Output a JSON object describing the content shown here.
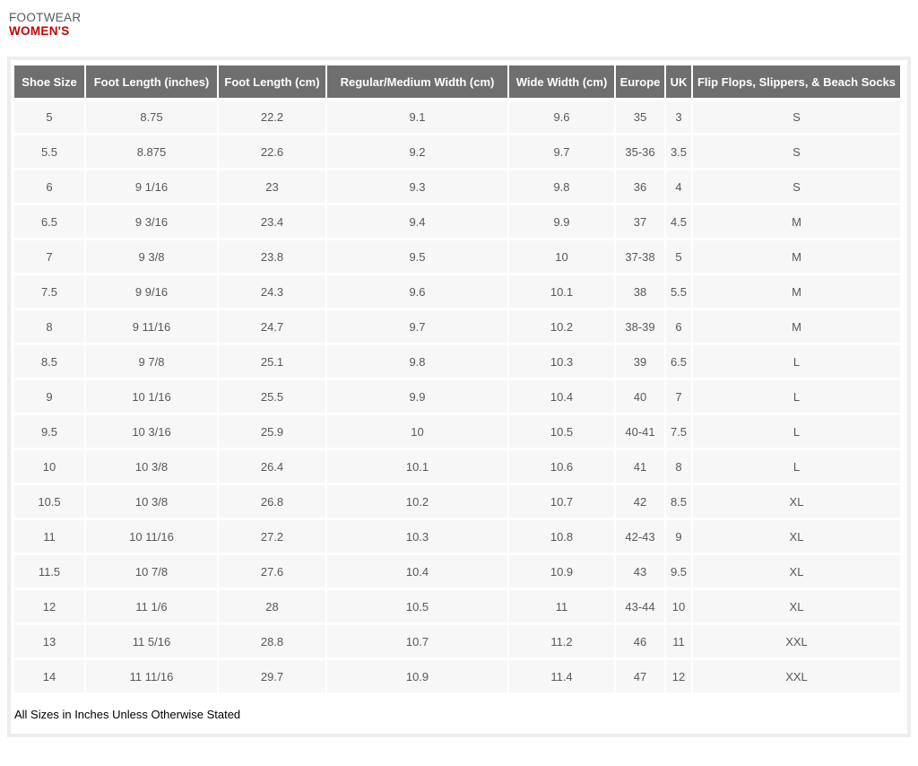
{
  "page": {
    "category_label": "FOOTWEAR",
    "title": "WOMEN'S",
    "footnote": "All Sizes in Inches Unless Otherwise Stated"
  },
  "colors": {
    "header_bg": "#6f6f6f",
    "header_text": "#ffffff",
    "cell_bg": "#f7f7f7",
    "cell_text": "#58585a",
    "title_accent": "#c90000",
    "title_muted": "#58595b",
    "panel_border": "#ededed"
  },
  "chart_data": {
    "type": "table",
    "title": "FOOTWEAR WOMEN'S",
    "columns": [
      "Shoe Size",
      "Foot Length (inches)",
      "Foot Length (cm)",
      "Regular/Medium Width (cm)",
      "Wide Width (cm)",
      "Europe",
      "UK",
      "Flip Flops, Slippers, & Beach Socks"
    ],
    "rows": [
      [
        "5",
        "8.75",
        "22.2",
        "9.1",
        "9.6",
        "35",
        "3",
        "S"
      ],
      [
        "5.5",
        "8.875",
        "22.6",
        "9.2",
        "9.7",
        "35-36",
        "3.5",
        "S"
      ],
      [
        "6",
        "9 1/16",
        "23",
        "9.3",
        "9.8",
        "36",
        "4",
        "S"
      ],
      [
        "6.5",
        "9 3/16",
        "23.4",
        "9.4",
        "9.9",
        "37",
        "4.5",
        "M"
      ],
      [
        "7",
        "9 3/8",
        "23.8",
        "9.5",
        "10",
        "37-38",
        "5",
        "M"
      ],
      [
        "7.5",
        "9 9/16",
        "24.3",
        "9.6",
        "10.1",
        "38",
        "5.5",
        "M"
      ],
      [
        "8",
        "9 11/16",
        "24.7",
        "9.7",
        "10.2",
        "38-39",
        "6",
        "M"
      ],
      [
        "8.5",
        "9 7/8",
        "25.1",
        "9.8",
        "10.3",
        "39",
        "6.5",
        "L"
      ],
      [
        "9",
        "10 1/16",
        "25.5",
        "9.9",
        "10.4",
        "40",
        "7",
        "L"
      ],
      [
        "9.5",
        "10 3/16",
        "25.9",
        "10",
        "10.5",
        "40-41",
        "7.5",
        "L"
      ],
      [
        "10",
        "10 3/8",
        "26.4",
        "10.1",
        "10.6",
        "41",
        "8",
        "L"
      ],
      [
        "10.5",
        "10 3/8",
        "26.8",
        "10.2",
        "10.7",
        "42",
        "8.5",
        "XL"
      ],
      [
        "11",
        "10 11/16",
        "27.2",
        "10.3",
        "10.8",
        "42-43",
        "9",
        "XL"
      ],
      [
        "11.5",
        "10 7/8",
        "27.6",
        "10.4",
        "10.9",
        "43",
        "9.5",
        "XL"
      ],
      [
        "12",
        "11 1/6",
        "28",
        "10.5",
        "11",
        "43-44",
        "10",
        "XL"
      ],
      [
        "13",
        "11 5/16",
        "28.8",
        "10.7",
        "11.2",
        "46",
        "11",
        "XXL"
      ],
      [
        "14",
        "11 11/16",
        "29.7",
        "10.9",
        "11.4",
        "47",
        "12",
        "XXL"
      ]
    ],
    "footnote": "All Sizes in Inches Unless Otherwise Stated"
  }
}
